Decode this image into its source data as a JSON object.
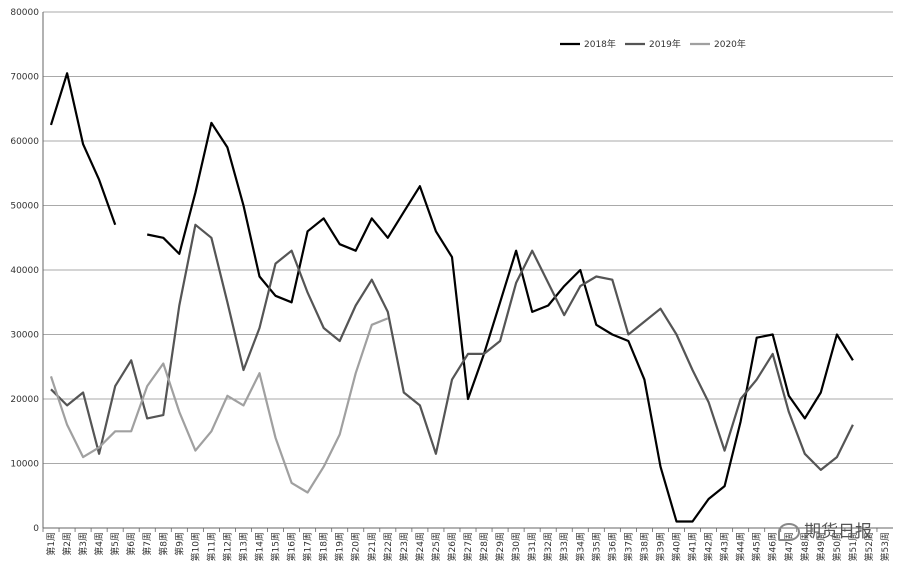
{
  "chart_data": {
    "type": "line",
    "title": "",
    "xlabel": "",
    "ylabel": "",
    "ylim": [
      0,
      80000
    ],
    "yticks": [
      0,
      10000,
      20000,
      30000,
      40000,
      50000,
      60000,
      70000,
      80000
    ],
    "ytick_labels": [
      "0",
      "10000",
      "20000",
      "30000",
      "40000",
      "50000",
      "60000",
      "70000",
      "80000"
    ],
    "grid": "horizontal",
    "legend_position": "top-right",
    "categories": [
      "第1周",
      "第2周",
      "第3周",
      "第4周",
      "第5周",
      "第6周",
      "第7周",
      "第8周",
      "第9周",
      "第10周",
      "第11周",
      "第12周",
      "第13周",
      "第14周",
      "第15周",
      "第16周",
      "第17周",
      "第18周",
      "第19周",
      "第20周",
      "第21周",
      "第22周",
      "第23周",
      "第24周",
      "第25周",
      "第26周",
      "第27周",
      "第28周",
      "第29周",
      "第30周",
      "第31周",
      "第32周",
      "第33周",
      "第34周",
      "第35周",
      "第36周",
      "第37周",
      "第38周",
      "第39周",
      "第40周",
      "第41周",
      "第42周",
      "第43周",
      "第44周",
      "第45周",
      "第46周",
      "第47周",
      "第48周",
      "第49周",
      "第50周",
      "第51周",
      "第52周",
      "第53周"
    ],
    "series": [
      {
        "name": "2018年",
        "color": "#000000",
        "values": [
          62500,
          70500,
          59500,
          54000,
          47000,
          null,
          45500,
          45000,
          42500,
          52000,
          62800,
          59000,
          50000,
          39000,
          36000,
          35000,
          46000,
          48000,
          44000,
          43000,
          48000,
          45000,
          49000,
          53000,
          46000,
          42000,
          20000,
          27000,
          35000,
          43000,
          33500,
          34500,
          37500,
          40000,
          31500,
          30000,
          29000,
          23000,
          9500,
          1000,
          1000,
          4500,
          6500,
          16500,
          29500,
          30000,
          20500,
          17000,
          21000,
          30000,
          26000,
          null,
          null
        ]
      },
      {
        "name": "2019年",
        "color": "#555555",
        "values": [
          21500,
          19000,
          21000,
          11500,
          22000,
          26000,
          17000,
          17500,
          34500,
          47000,
          45000,
          35000,
          24500,
          31000,
          41000,
          43000,
          36500,
          31000,
          29000,
          34500,
          38500,
          33500,
          21000,
          19000,
          11500,
          23000,
          27000,
          27000,
          29000,
          38000,
          43000,
          38000,
          33000,
          37500,
          39000,
          38500,
          30000,
          32000,
          34000,
          30000,
          24500,
          19500,
          12000,
          20000,
          23000,
          27000,
          18000,
          11500,
          9000,
          11000,
          16000,
          null,
          null
        ]
      },
      {
        "name": "2020年",
        "color": "#a0a0a0",
        "values": [
          23500,
          16000,
          11000,
          12500,
          15000,
          15000,
          22000,
          25500,
          18000,
          12000,
          15000,
          20500,
          19000,
          24000,
          14000,
          7000,
          5500,
          9500,
          14500,
          24000,
          31500,
          32500,
          null,
          null,
          null,
          null,
          null,
          null,
          null,
          null,
          null,
          null,
          null,
          null,
          null,
          null,
          null,
          null,
          null,
          null,
          null,
          null,
          null,
          null,
          null,
          null,
          null,
          null,
          null,
          null,
          null,
          null,
          null
        ]
      }
    ]
  },
  "watermark": {
    "text": "期货日报"
  }
}
